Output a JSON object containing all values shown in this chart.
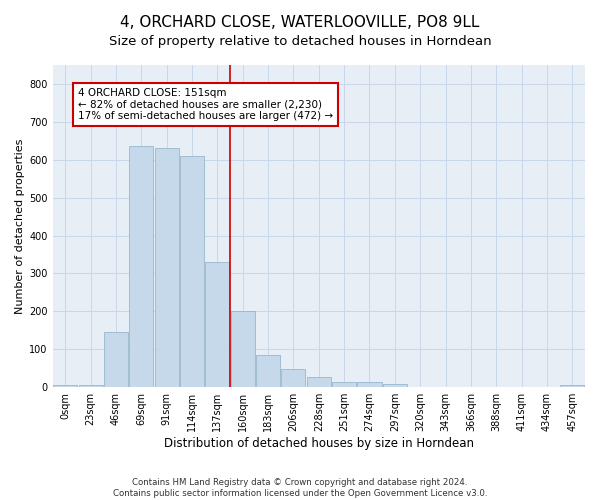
{
  "title": "4, ORCHARD CLOSE, WATERLOOVILLE, PO8 9LL",
  "subtitle": "Size of property relative to detached houses in Horndean",
  "xlabel_bottom": "Distribution of detached houses by size in Horndean",
  "ylabel": "Number of detached properties",
  "footnote1": "Contains HM Land Registry data © Crown copyright and database right 2024.",
  "footnote2": "Contains public sector information licensed under the Open Government Licence v3.0.",
  "bar_color": "#c6d9ea",
  "bar_edge_color": "#8aafc8",
  "grid_color": "#c8d8ea",
  "background_color": "#e8eef6",
  "vline_x": 6,
  "vline_color": "#cc0000",
  "annotation_box_color": "#cc0000",
  "annotation_line1": "4 ORCHARD CLOSE: 151sqm",
  "annotation_line2": "← 82% of detached houses are smaller (2,230)",
  "annotation_line3": "17% of semi-detached houses are larger (472) →",
  "annotation_fontsize": 7.5,
  "bin_labels": [
    "0sqm",
    "23sqm",
    "46sqm",
    "69sqm",
    "91sqm",
    "114sqm",
    "137sqm",
    "160sqm",
    "183sqm",
    "206sqm",
    "228sqm",
    "251sqm",
    "274sqm",
    "297sqm",
    "320sqm",
    "343sqm",
    "366sqm",
    "388sqm",
    "411sqm",
    "434sqm",
    "457sqm"
  ],
  "bar_heights": [
    5,
    5,
    145,
    635,
    630,
    610,
    330,
    200,
    85,
    48,
    27,
    13,
    13,
    8,
    0,
    0,
    0,
    0,
    0,
    0,
    5
  ],
  "ylim": [
    0,
    850
  ],
  "yticks": [
    0,
    100,
    200,
    300,
    400,
    500,
    600,
    700,
    800
  ],
  "title_fontsize": 11,
  "subtitle_fontsize": 9.5,
  "ylabel_fontsize": 8,
  "xlabel_fontsize": 8.5,
  "tick_fontsize": 7,
  "footnote_fontsize": 6.2
}
